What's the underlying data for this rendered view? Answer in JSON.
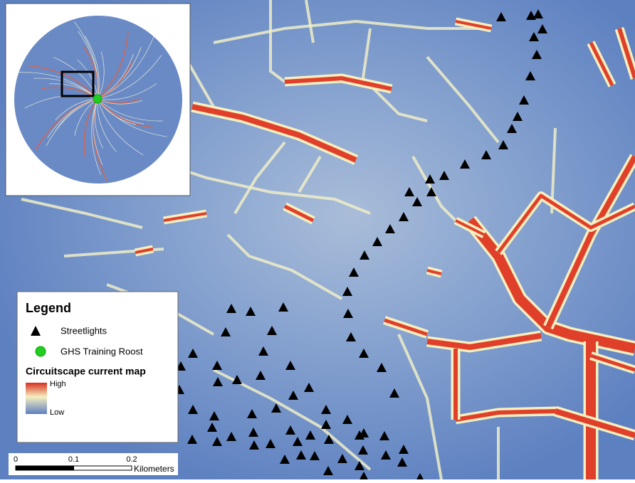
{
  "legend": {
    "title": "Legend",
    "items": [
      {
        "label": "Streetlights"
      },
      {
        "label": "GHS Training Roost"
      }
    ],
    "current_map": {
      "title": "Circuitscape current map",
      "high": "High",
      "low": "Low"
    }
  },
  "scale_bar": {
    "ticks": [
      0,
      0.1,
      0.2
    ],
    "unit": "Kilometers"
  }
}
